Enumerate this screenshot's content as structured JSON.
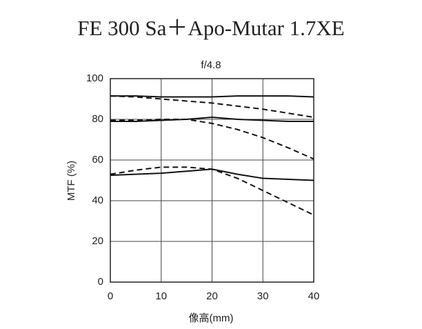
{
  "chart_data": {
    "type": "line",
    "title": "FE 300 Sa＋Apo-Mutar 1.7XE",
    "subtitle": "f/4.8",
    "y_label": "MTF (%)",
    "x_label": "像高(mm)",
    "x": [
      0,
      5,
      10,
      15,
      20,
      25,
      30,
      35,
      40
    ],
    "series": [
      {
        "color": "#111111",
        "dash": "solid",
        "values": [
          91.5,
          91.5,
          91,
          91,
          91,
          91.5,
          91.5,
          91.5,
          91
        ]
      },
      {
        "color": "#111111",
        "dash": "dashed",
        "values": [
          91.5,
          91,
          90,
          89,
          88,
          86.5,
          85,
          83,
          81
        ]
      },
      {
        "color": "#111111",
        "dash": "solid",
        "values": [
          79,
          79,
          79.5,
          80,
          81,
          80,
          79.5,
          79,
          79
        ]
      },
      {
        "color": "#111111",
        "dash": "dashed",
        "values": [
          79.5,
          79.5,
          80,
          80,
          78,
          75,
          71,
          66,
          60.5
        ]
      },
      {
        "color": "#111111",
        "dash": "solid",
        "values": [
          52.5,
          53,
          53.5,
          54.5,
          55.5,
          53,
          51,
          50.5,
          50
        ]
      },
      {
        "color": "#111111",
        "dash": "dashed",
        "values": [
          53,
          55,
          56.5,
          56.5,
          55.5,
          51,
          45,
          39,
          33
        ]
      }
    ],
    "xlim": [
      0,
      40
    ],
    "xticks": [
      0,
      10,
      20,
      30,
      40
    ],
    "ylim": [
      0,
      100
    ],
    "yticks": [
      0,
      20,
      40,
      60,
      80,
      100
    ],
    "grid": true
  }
}
